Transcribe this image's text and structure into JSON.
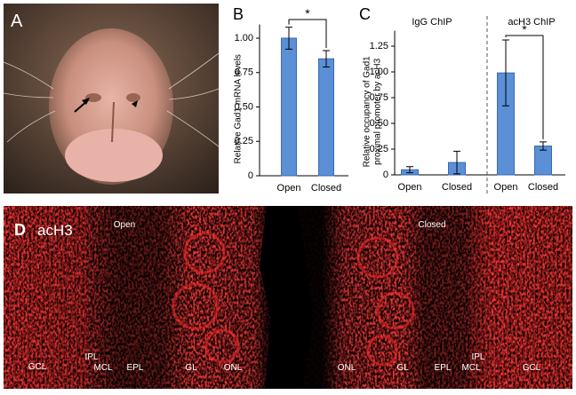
{
  "figure": {
    "panel_a": {
      "label": "A"
    },
    "panel_d": {
      "label": "D",
      "stain": "acH3",
      "open": "Open",
      "closed": "Closed",
      "layers": [
        "GCL",
        "IPL",
        "MCL",
        "EPL",
        "GL",
        "ONL",
        "ONL",
        "GL",
        "EPL",
        "IPL",
        "MCL",
        "GCL"
      ]
    }
  },
  "chart_data": [
    {
      "type": "bar",
      "label": "B",
      "y_label": "Relative Gad1 mRNA levels",
      "categories": [
        "Open",
        "Closed"
      ],
      "values": [
        1.0,
        0.85
      ],
      "errors": [
        0.08,
        0.06
      ],
      "color": "#5b8fd6",
      "annotation": "*",
      "ylim": [
        0,
        1.1
      ],
      "yticks": [
        0,
        {
          "value": 0.25,
          "label": "0.25"
        },
        {
          "value": 0.5,
          "label": "0.50"
        },
        {
          "value": 0.75,
          "label": "0.75"
        },
        {
          "value": 1.0,
          "label": "1.00"
        }
      ]
    },
    {
      "type": "bar",
      "label": "C",
      "y_label": [
        "Relative occupancy of Gad1",
        "proximal promoter by acH3"
      ],
      "groups": [
        "IgG ChIP",
        "acH3 ChIP"
      ],
      "categories": [
        "Open",
        "Closed",
        "Open",
        "Closed"
      ],
      "values": [
        0.05,
        0.12,
        0.99,
        0.28
      ],
      "errors": [
        0.03,
        0.11,
        0.32,
        0.04
      ],
      "color": "#5b8fd6",
      "annotation": "*",
      "ylim": [
        0,
        1.4
      ],
      "yticks": [
        0,
        {
          "value": 0.25,
          "label": "0.25"
        },
        {
          "value": 0.5,
          "label": "0.50"
        },
        {
          "value": 0.75,
          "label": "0.75"
        },
        {
          "value": 1.0,
          "label": "1.00"
        },
        {
          "value": 1.25,
          "label": "1.25"
        }
      ]
    }
  ]
}
